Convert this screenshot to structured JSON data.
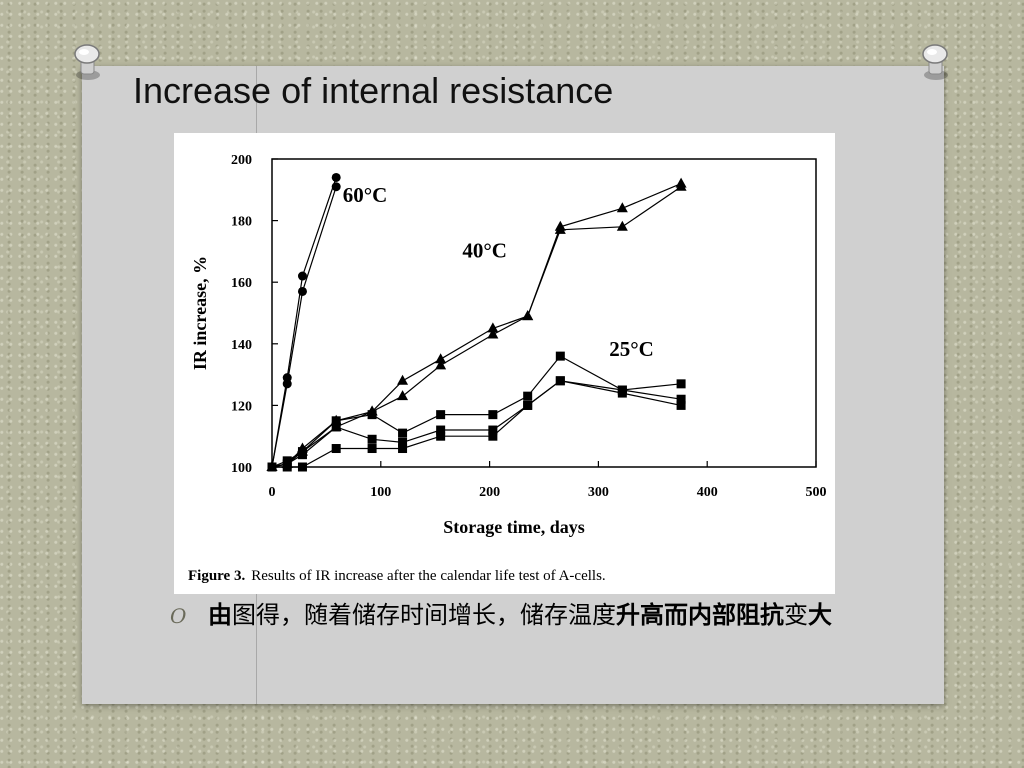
{
  "slide": {
    "title": "Increase of internal resistance",
    "bullet": {
      "marker": "O",
      "segments": [
        {
          "text": "由",
          "bold": true
        },
        {
          "text": "图得，随着储存时间增长，储存温度",
          "bold": false
        },
        {
          "text": "升高而内部阻抗",
          "bold": true
        },
        {
          "text": "变",
          "bold": false
        },
        {
          "text": "大",
          "bold": true
        }
      ]
    }
  },
  "figure": {
    "caption_label": "Figure 3.",
    "caption_text": "Results of IR increase after the calendar life test of A-cells."
  },
  "chart_data": {
    "type": "line",
    "xlabel": "Storage time, days",
    "ylabel": "IR increase, %",
    "xlim": [
      0,
      500
    ],
    "ylim": [
      100,
      200
    ],
    "xticks": [
      0,
      100,
      200,
      300,
      400,
      500
    ],
    "yticks": [
      100,
      120,
      140,
      160,
      180,
      200
    ],
    "grid": false,
    "annotations": [
      {
        "text": "60°C",
        "x": 65,
        "y": 186
      },
      {
        "text": "40°C",
        "x": 175,
        "y": 168
      },
      {
        "text": "25°C",
        "x": 310,
        "y": 136
      }
    ],
    "series": [
      {
        "group": "60°C",
        "marker": "circle",
        "x": [
          0,
          14,
          28,
          59
        ],
        "y": [
          100,
          129,
          162,
          194
        ]
      },
      {
        "group": "60°C",
        "marker": "circle",
        "x": [
          0,
          14,
          28,
          59
        ],
        "y": [
          100,
          127,
          157,
          191
        ]
      },
      {
        "group": "40°C",
        "marker": "triangle",
        "x": [
          0,
          14,
          28,
          59,
          92,
          120,
          155,
          203,
          235,
          265,
          322,
          376
        ],
        "y": [
          100,
          101,
          106,
          115,
          118,
          128,
          135,
          145,
          149,
          178,
          184,
          192
        ]
      },
      {
        "group": "40°C",
        "marker": "triangle",
        "x": [
          0,
          14,
          28,
          59,
          92,
          120,
          155,
          203,
          235,
          265,
          322,
          376
        ],
        "y": [
          100,
          101,
          105,
          113,
          118,
          123,
          133,
          143,
          149,
          177,
          178,
          191
        ]
      },
      {
        "group": "25°C",
        "marker": "square",
        "x": [
          0,
          14,
          28,
          59,
          92,
          120,
          155,
          203,
          235,
          265,
          322,
          376
        ],
        "y": [
          100,
          102,
          105,
          115,
          117,
          111,
          117,
          117,
          123,
          136,
          125,
          127
        ]
      },
      {
        "group": "25°C",
        "marker": "square",
        "x": [
          0,
          14,
          28,
          59,
          92,
          120,
          155,
          203,
          235,
          265,
          322,
          376
        ],
        "y": [
          100,
          101,
          104,
          113,
          109,
          108,
          112,
          112,
          120,
          128,
          125,
          122
        ]
      },
      {
        "group": "25°C",
        "marker": "square",
        "x": [
          0,
          14,
          28,
          59,
          92,
          120,
          155,
          203,
          235,
          265,
          322,
          376
        ],
        "y": [
          100,
          100,
          100,
          106,
          106,
          106,
          110,
          110,
          120,
          128,
          124,
          120
        ]
      }
    ]
  }
}
